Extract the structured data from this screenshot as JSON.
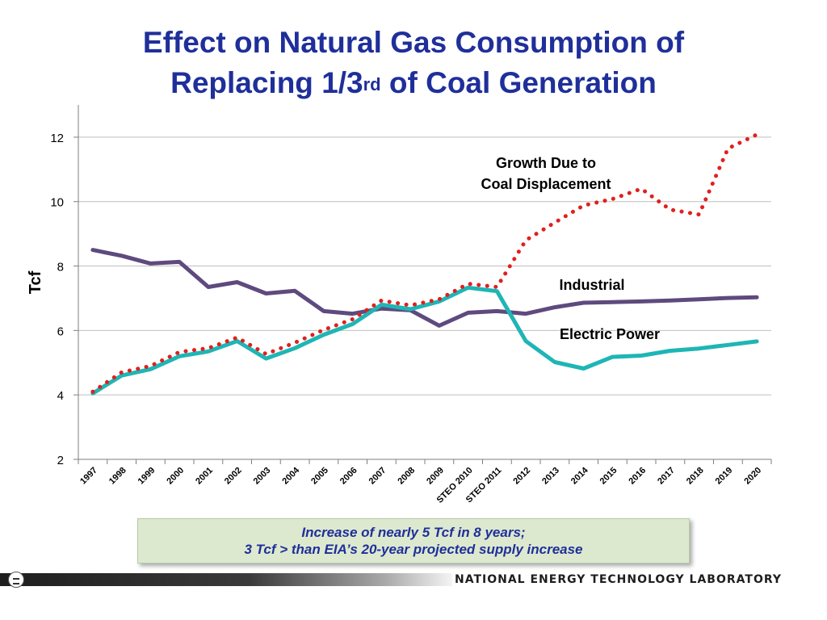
{
  "slide": {
    "title_line1": "Effect on Natural Gas Consumption of",
    "title_line2_pre": "Replacing 1/3",
    "title_line2_sup": "rd",
    "title_line2_post": " of Coal Generation",
    "callout_line1": "Increase of nearly 5 Tcf in 8 years;",
    "callout_line2": "3 Tcf > than EIA’s 20-year projected supply increase",
    "org_name": "NATIONAL ENERGY TECHNOLOGY LABORATORY"
  },
  "colors": {
    "title": "#1f2f9a",
    "industrial": "#5e4a7e",
    "electric": "#1fb5b5",
    "growth": "#e0201e",
    "grid": "#bfbfbf",
    "callout_bg": "#dde9cf"
  },
  "chart_data": {
    "type": "line",
    "ylabel": "Tcf",
    "ylim": [
      2,
      13
    ],
    "yticks": [
      2,
      4,
      6,
      8,
      10,
      12
    ],
    "grid": "horizontal",
    "categories": [
      "1997",
      "1998",
      "1999",
      "2000",
      "2001",
      "2002",
      "2003",
      "2004",
      "2005",
      "2006",
      "2007",
      "2008",
      "2009",
      "STEO 2010",
      "STEO 2011",
      "2012",
      "2013",
      "2014",
      "2015",
      "2016",
      "2017",
      "2018",
      "2019",
      "2020"
    ],
    "series": [
      {
        "name": "Industrial",
        "style": "solid",
        "values": [
          8.5,
          8.32,
          8.08,
          8.13,
          7.35,
          7.5,
          7.15,
          7.23,
          6.6,
          6.52,
          6.68,
          6.63,
          6.15,
          6.55,
          6.6,
          6.52,
          6.72,
          6.86,
          6.88,
          6.9,
          6.93,
          6.97,
          7.01,
          7.03
        ]
      },
      {
        "name": "Electric Power",
        "style": "solid",
        "values": [
          4.05,
          4.6,
          4.8,
          5.2,
          5.35,
          5.67,
          5.13,
          5.45,
          5.87,
          6.2,
          6.8,
          6.66,
          6.9,
          7.33,
          7.22,
          5.67,
          5.02,
          4.82,
          5.18,
          5.22,
          5.37,
          5.44,
          5.55,
          5.66
        ]
      },
      {
        "name": "Growth Due to Coal Displacement",
        "style": "dotted",
        "values": [
          4.1,
          4.7,
          4.9,
          5.33,
          5.45,
          5.78,
          5.27,
          5.62,
          6.02,
          6.35,
          6.93,
          6.78,
          6.97,
          7.45,
          7.35,
          8.8,
          9.35,
          9.88,
          10.08,
          10.4,
          9.75,
          9.6,
          11.65,
          12.08
        ]
      }
    ],
    "annotations": [
      {
        "text_line1": "Growth Due to",
        "text_line2": "Coal Displacement",
        "series": "Growth Due to Coal Displacement"
      },
      {
        "text": "Industrial",
        "series": "Industrial"
      },
      {
        "text": "Electric Power",
        "series": "Electric Power"
      }
    ]
  }
}
